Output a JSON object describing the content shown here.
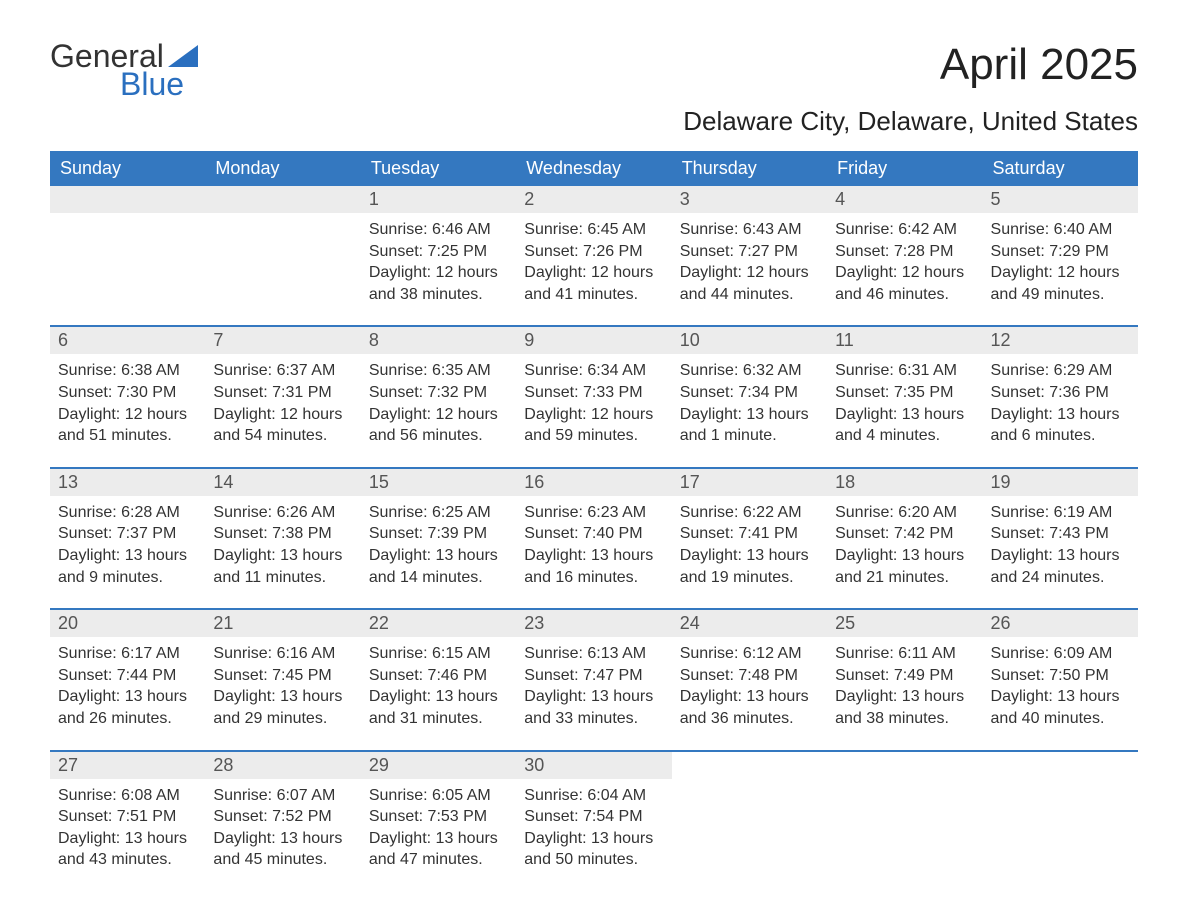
{
  "logo": {
    "word1": "General",
    "word2": "Blue",
    "sail_color": "#2a6fbf"
  },
  "title": "April 2025",
  "subtitle": "Delaware City, Delaware, United States",
  "colors": {
    "header_bg": "#3478c0",
    "header_text": "#ffffff",
    "daynum_bg": "#ececec",
    "daynum_text": "#555555",
    "body_text": "#333333",
    "week_border": "#3478c0"
  },
  "day_headers": [
    "Sunday",
    "Monday",
    "Tuesday",
    "Wednesday",
    "Thursday",
    "Friday",
    "Saturday"
  ],
  "weeks": [
    [
      {
        "n": "",
        "sunrise": "",
        "sunset": "",
        "daylight": ""
      },
      {
        "n": "",
        "sunrise": "",
        "sunset": "",
        "daylight": ""
      },
      {
        "n": "1",
        "sunrise": "Sunrise: 6:46 AM",
        "sunset": "Sunset: 7:25 PM",
        "daylight": "Daylight: 12 hours and 38 minutes."
      },
      {
        "n": "2",
        "sunrise": "Sunrise: 6:45 AM",
        "sunset": "Sunset: 7:26 PM",
        "daylight": "Daylight: 12 hours and 41 minutes."
      },
      {
        "n": "3",
        "sunrise": "Sunrise: 6:43 AM",
        "sunset": "Sunset: 7:27 PM",
        "daylight": "Daylight: 12 hours and 44 minutes."
      },
      {
        "n": "4",
        "sunrise": "Sunrise: 6:42 AM",
        "sunset": "Sunset: 7:28 PM",
        "daylight": "Daylight: 12 hours and 46 minutes."
      },
      {
        "n": "5",
        "sunrise": "Sunrise: 6:40 AM",
        "sunset": "Sunset: 7:29 PM",
        "daylight": "Daylight: 12 hours and 49 minutes."
      }
    ],
    [
      {
        "n": "6",
        "sunrise": "Sunrise: 6:38 AM",
        "sunset": "Sunset: 7:30 PM",
        "daylight": "Daylight: 12 hours and 51 minutes."
      },
      {
        "n": "7",
        "sunrise": "Sunrise: 6:37 AM",
        "sunset": "Sunset: 7:31 PM",
        "daylight": "Daylight: 12 hours and 54 minutes."
      },
      {
        "n": "8",
        "sunrise": "Sunrise: 6:35 AM",
        "sunset": "Sunset: 7:32 PM",
        "daylight": "Daylight: 12 hours and 56 minutes."
      },
      {
        "n": "9",
        "sunrise": "Sunrise: 6:34 AM",
        "sunset": "Sunset: 7:33 PM",
        "daylight": "Daylight: 12 hours and 59 minutes."
      },
      {
        "n": "10",
        "sunrise": "Sunrise: 6:32 AM",
        "sunset": "Sunset: 7:34 PM",
        "daylight": "Daylight: 13 hours and 1 minute."
      },
      {
        "n": "11",
        "sunrise": "Sunrise: 6:31 AM",
        "sunset": "Sunset: 7:35 PM",
        "daylight": "Daylight: 13 hours and 4 minutes."
      },
      {
        "n": "12",
        "sunrise": "Sunrise: 6:29 AM",
        "sunset": "Sunset: 7:36 PM",
        "daylight": "Daylight: 13 hours and 6 minutes."
      }
    ],
    [
      {
        "n": "13",
        "sunrise": "Sunrise: 6:28 AM",
        "sunset": "Sunset: 7:37 PM",
        "daylight": "Daylight: 13 hours and 9 minutes."
      },
      {
        "n": "14",
        "sunrise": "Sunrise: 6:26 AM",
        "sunset": "Sunset: 7:38 PM",
        "daylight": "Daylight: 13 hours and 11 minutes."
      },
      {
        "n": "15",
        "sunrise": "Sunrise: 6:25 AM",
        "sunset": "Sunset: 7:39 PM",
        "daylight": "Daylight: 13 hours and 14 minutes."
      },
      {
        "n": "16",
        "sunrise": "Sunrise: 6:23 AM",
        "sunset": "Sunset: 7:40 PM",
        "daylight": "Daylight: 13 hours and 16 minutes."
      },
      {
        "n": "17",
        "sunrise": "Sunrise: 6:22 AM",
        "sunset": "Sunset: 7:41 PM",
        "daylight": "Daylight: 13 hours and 19 minutes."
      },
      {
        "n": "18",
        "sunrise": "Sunrise: 6:20 AM",
        "sunset": "Sunset: 7:42 PM",
        "daylight": "Daylight: 13 hours and 21 minutes."
      },
      {
        "n": "19",
        "sunrise": "Sunrise: 6:19 AM",
        "sunset": "Sunset: 7:43 PM",
        "daylight": "Daylight: 13 hours and 24 minutes."
      }
    ],
    [
      {
        "n": "20",
        "sunrise": "Sunrise: 6:17 AM",
        "sunset": "Sunset: 7:44 PM",
        "daylight": "Daylight: 13 hours and 26 minutes."
      },
      {
        "n": "21",
        "sunrise": "Sunrise: 6:16 AM",
        "sunset": "Sunset: 7:45 PM",
        "daylight": "Daylight: 13 hours and 29 minutes."
      },
      {
        "n": "22",
        "sunrise": "Sunrise: 6:15 AM",
        "sunset": "Sunset: 7:46 PM",
        "daylight": "Daylight: 13 hours and 31 minutes."
      },
      {
        "n": "23",
        "sunrise": "Sunrise: 6:13 AM",
        "sunset": "Sunset: 7:47 PM",
        "daylight": "Daylight: 13 hours and 33 minutes."
      },
      {
        "n": "24",
        "sunrise": "Sunrise: 6:12 AM",
        "sunset": "Sunset: 7:48 PM",
        "daylight": "Daylight: 13 hours and 36 minutes."
      },
      {
        "n": "25",
        "sunrise": "Sunrise: 6:11 AM",
        "sunset": "Sunset: 7:49 PM",
        "daylight": "Daylight: 13 hours and 38 minutes."
      },
      {
        "n": "26",
        "sunrise": "Sunrise: 6:09 AM",
        "sunset": "Sunset: 7:50 PM",
        "daylight": "Daylight: 13 hours and 40 minutes."
      }
    ],
    [
      {
        "n": "27",
        "sunrise": "Sunrise: 6:08 AM",
        "sunset": "Sunset: 7:51 PM",
        "daylight": "Daylight: 13 hours and 43 minutes."
      },
      {
        "n": "28",
        "sunrise": "Sunrise: 6:07 AM",
        "sunset": "Sunset: 7:52 PM",
        "daylight": "Daylight: 13 hours and 45 minutes."
      },
      {
        "n": "29",
        "sunrise": "Sunrise: 6:05 AM",
        "sunset": "Sunset: 7:53 PM",
        "daylight": "Daylight: 13 hours and 47 minutes."
      },
      {
        "n": "30",
        "sunrise": "Sunrise: 6:04 AM",
        "sunset": "Sunset: 7:54 PM",
        "daylight": "Daylight: 13 hours and 50 minutes."
      },
      {
        "n": "",
        "sunrise": "",
        "sunset": "",
        "daylight": ""
      },
      {
        "n": "",
        "sunrise": "",
        "sunset": "",
        "daylight": ""
      },
      {
        "n": "",
        "sunrise": "",
        "sunset": "",
        "daylight": ""
      }
    ]
  ]
}
